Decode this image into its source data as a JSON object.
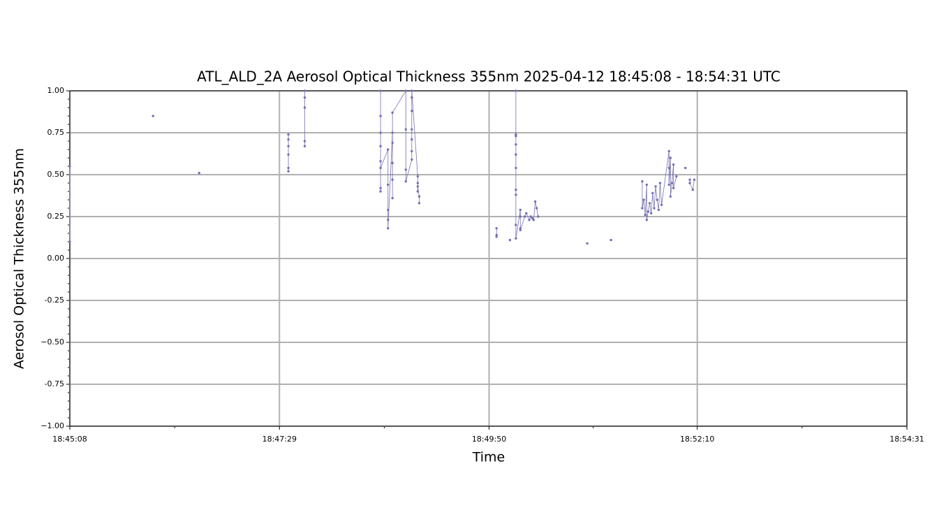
{
  "chart_data": {
    "type": "line",
    "title": "ATL_ALD_2A Aerosol Optical Thickness 355nm    2025-04-12    18:45:08 - 18:54:31 UTC",
    "xlabel": "Time",
    "ylabel": "Aerosol Optical Thickness 355nm",
    "xlim": [
      "18:45:08",
      "18:54:31"
    ],
    "xticks": [
      "18:45:08",
      "18:47:29",
      "18:49:50",
      "18:52:10",
      "18:54:31"
    ],
    "ylim": [
      -1,
      1
    ],
    "yticks": [
      {
        "value": -1,
        "label": "−1.00"
      },
      -0.75,
      {
        "value": -0.5,
        "label": "−0.50"
      },
      -0.25,
      {
        "value": 0,
        "label": "0.00"
      },
      0.25,
      {
        "value": 0.5,
        "label": "0.50"
      },
      0.75,
      {
        "value": 1,
        "label": "1.00"
      }
    ],
    "grid": true,
    "series": [
      {
        "color": "#7570b3",
        "x": [
          "18:45:08",
          "18:45:08",
          null,
          "18:46:04",
          null,
          "18:46:35",
          null,
          "18:47:35",
          "18:47:35",
          "18:47:35",
          "18:47:35",
          "18:47:35",
          "18:47:35",
          null,
          "18:47:46",
          "18:47:46",
          "18:47:46",
          "18:47:46",
          "18:47:46",
          null,
          "18:48:37",
          "18:48:37",
          "18:48:37",
          "18:48:37",
          "18:48:37",
          "18:48:37",
          "18:48:37",
          "18:48:37",
          "18:48:42",
          "18:48:42",
          "18:48:42",
          "18:48:42",
          "18:48:42",
          "18:48:45",
          "18:48:45",
          "18:48:45",
          "18:48:45",
          "18:48:45",
          "18:48:45",
          "18:48:54",
          "18:48:54",
          "18:48:54",
          "18:48:54",
          "18:48:58",
          "18:48:58",
          "18:48:58",
          "18:48:58",
          "18:48:58",
          "18:48:58",
          "18:48:58",
          "18:49:02",
          "18:49:02",
          "18:49:02",
          "18:49:02",
          "18:49:03",
          "18:49:03",
          null,
          "18:49:55",
          "18:49:55",
          "18:49:55",
          null,
          "18:50:04",
          null,
          "18:50:08",
          "18:50:08",
          "18:50:08",
          "18:50:08",
          "18:50:08",
          "18:50:08",
          "18:50:08",
          "18:50:08",
          "18:50:08",
          "18:50:08",
          "18:50:11",
          "18:50:11",
          "18:50:11",
          "18:50:11",
          "18:50:14",
          "18:50:15",
          "18:50:17",
          "18:50:18",
          "18:50:19",
          "18:50:20",
          "18:50:21",
          "18:50:22",
          "18:50:23",
          null,
          "18:50:56",
          null,
          "18:51:12",
          null,
          "18:51:33",
          "18:51:33",
          "18:51:34",
          "18:51:35",
          "18:51:36",
          "18:51:36",
          "18:51:37",
          "18:51:38",
          "18:51:39",
          "18:51:40",
          "18:51:41",
          "18:51:42",
          "18:51:43",
          "18:51:44",
          "18:51:45",
          "18:51:46",
          "18:51:51",
          "18:51:51",
          "18:51:51",
          "18:51:52",
          "18:51:52",
          "18:51:53",
          "18:51:54",
          "18:51:54",
          "18:51:56",
          null,
          "18:52:02",
          null,
          "18:52:05",
          "18:52:05",
          "18:52:07",
          "18:52:08"
        ],
        "values": [
          0.1,
          0.55,
          null,
          0.85,
          null,
          0.51,
          null,
          0.74,
          0.71,
          0.67,
          0.62,
          0.54,
          0.52,
          null,
          1.0,
          0.96,
          0.9,
          0.7,
          0.67,
          null,
          1.0,
          0.85,
          0.75,
          0.67,
          0.58,
          0.42,
          0.4,
          0.54,
          0.65,
          0.44,
          0.29,
          0.23,
          0.18,
          0.75,
          0.69,
          0.57,
          0.47,
          0.36,
          0.87,
          1.0,
          0.77,
          0.53,
          0.46,
          0.59,
          0.88,
          0.77,
          0.64,
          0.96,
          0.71,
          1.0,
          0.49,
          0.45,
          0.4,
          0.43,
          0.37,
          0.33,
          null,
          0.14,
          0.18,
          0.13,
          null,
          0.11,
          null,
          1.0,
          0.73,
          0.41,
          0.74,
          0.68,
          0.62,
          0.54,
          0.38,
          0.2,
          0.12,
          0.29,
          0.25,
          0.18,
          0.17,
          0.25,
          0.27,
          0.23,
          0.25,
          0.24,
          0.23,
          0.34,
          0.3,
          0.25,
          null,
          0.09,
          null,
          0.11,
          null,
          0.46,
          0.3,
          0.35,
          0.26,
          0.44,
          0.23,
          0.28,
          0.33,
          0.27,
          0.39,
          0.3,
          0.43,
          0.35,
          0.29,
          0.45,
          0.32,
          0.64,
          0.54,
          0.44,
          0.6,
          0.37,
          0.45,
          0.56,
          0.42,
          0.49,
          null,
          0.54,
          null,
          0.47,
          0.45,
          0.41,
          0.47
        ]
      }
    ]
  }
}
